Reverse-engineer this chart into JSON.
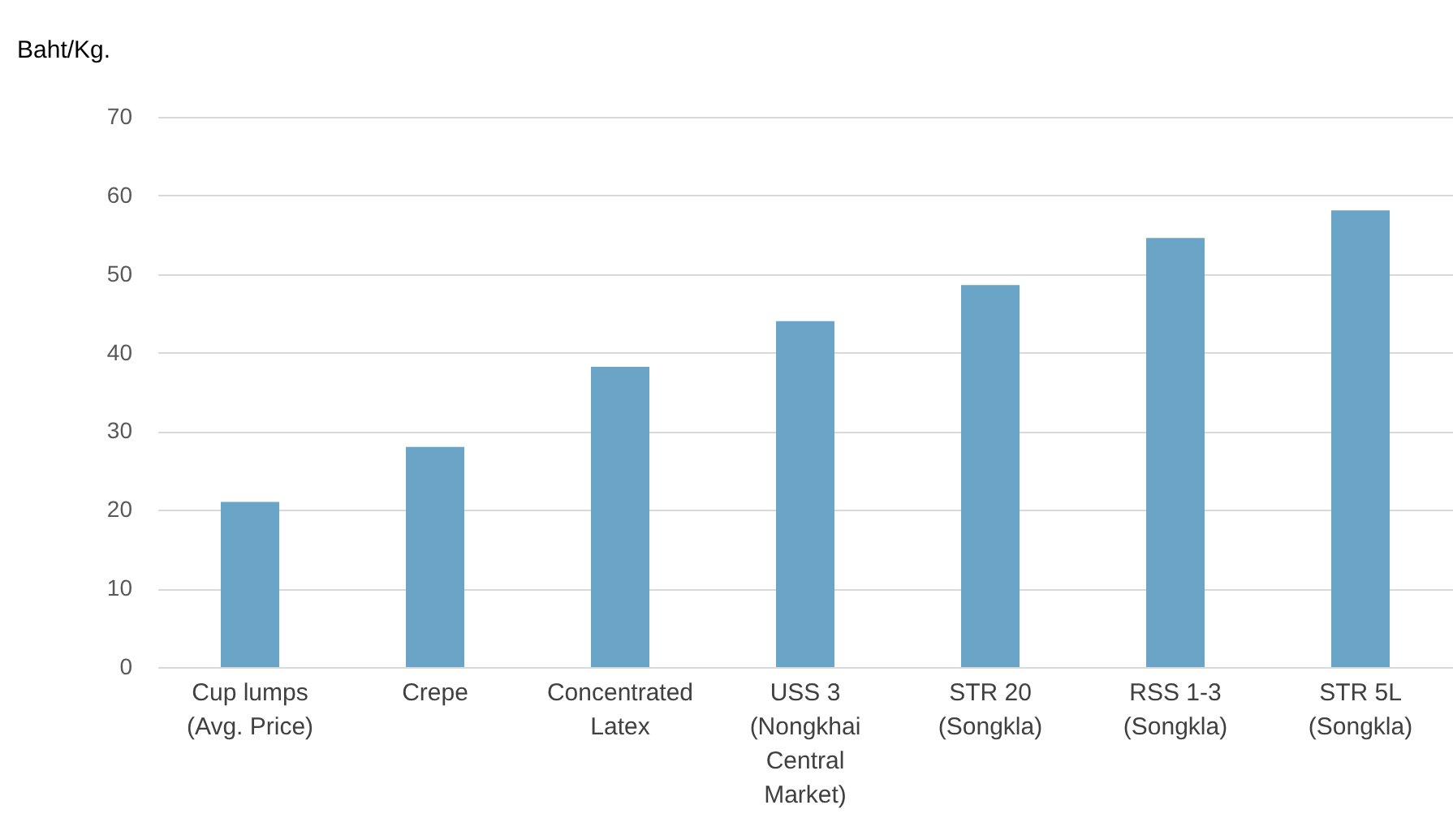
{
  "chart_data": {
    "type": "bar",
    "ylabel": "Baht/Kg.",
    "categories": [
      "Cup lumps (Avg. Price)",
      "Crepe",
      "Concentrated Latex",
      "USS 3 (Nongkhai Central Market)",
      "STR 20 (Songkla)",
      "RSS 1-3 (Songkla)",
      "STR 5L (Songkla)"
    ],
    "values": [
      21,
      28,
      38.2,
      44,
      48.6,
      54.6,
      58.1
    ],
    "color": "#6aa4c6",
    "ylim": [
      0,
      70
    ],
    "yticks": [
      0,
      10,
      20,
      30,
      40,
      50,
      60,
      70
    ],
    "grid": "y"
  }
}
